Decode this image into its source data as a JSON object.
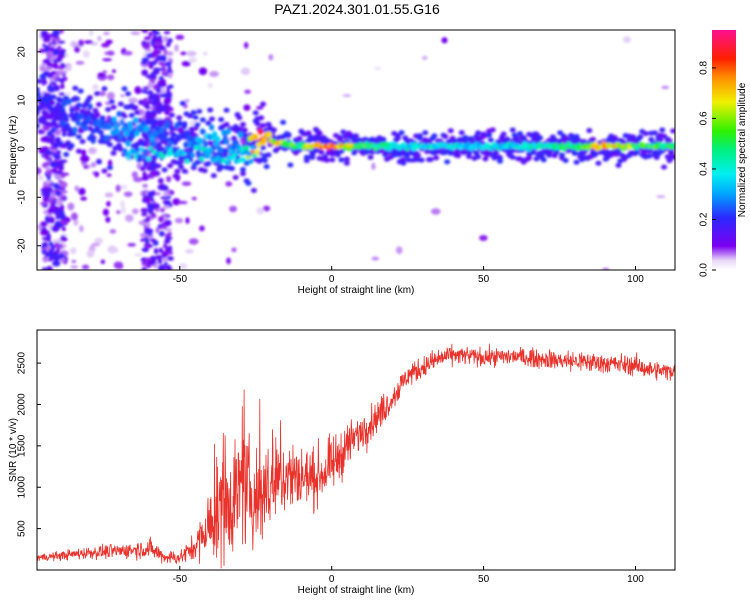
{
  "figure": {
    "title": "PAZ1.2024.301.01.55.G16"
  },
  "chart_data": [
    {
      "type": "heatmap",
      "xlabel": "Height of straight line (km)",
      "ylabel": "Frequency (Hz)",
      "xlim": [
        -97,
        113
      ],
      "ylim": [
        -25,
        24.5
      ],
      "x_ticks": [
        -50,
        0,
        50,
        100
      ],
      "y_ticks": [
        -20,
        -10,
        0,
        10,
        20
      ],
      "x_tick_labels": [
        "-50",
        "0",
        "50",
        "100"
      ],
      "y_tick_labels": [
        "-20",
        "-10",
        "0",
        "10",
        "20"
      ],
      "colorbar": {
        "label": "Normalized spectral amplitude",
        "range": [
          0,
          0.95
        ],
        "ticks": [
          0.0,
          0.2,
          0.4,
          0.6,
          0.8
        ],
        "tick_labels": [
          "0.0",
          "0.2",
          "0.4",
          "0.6",
          "0.8"
        ],
        "colormap": "rainbow (white→violet→blue→cyan→green→yellow→red→magenta)"
      },
      "ridge": {
        "x": [
          -97,
          -90,
          -85,
          -80,
          -75,
          -70,
          -65,
          -60,
          -55,
          -50,
          -45,
          -40,
          -35,
          -30,
          -25,
          -20,
          -15,
          -10,
          -5,
          0,
          10,
          20,
          30,
          40,
          50,
          60,
          70,
          80,
          90,
          100,
          113
        ],
        "frequency": [
          10,
          7,
          6,
          5,
          4.5,
          4.5,
          4,
          3.5,
          3,
          2.5,
          2,
          1.5,
          1,
          1,
          1.5,
          1.5,
          1,
          0.5,
          0.5,
          0.5,
          0.5,
          0.5,
          0.5,
          0.5,
          0.5,
          0.5,
          0.5,
          0.5,
          0.5,
          0.5,
          0.5
        ],
        "amplitude": [
          0.2,
          0.2,
          0.25,
          0.25,
          0.25,
          0.3,
          0.3,
          0.3,
          0.25,
          0.25,
          0.3,
          0.35,
          0.3,
          0.3,
          0.85,
          0.8,
          0.6,
          0.55,
          0.75,
          0.9,
          0.55,
          0.45,
          0.4,
          0.4,
          0.4,
          0.4,
          0.45,
          0.5,
          0.75,
          0.6,
          0.5
        ]
      }
    },
    {
      "type": "line",
      "xlabel": "Height of straight line (km)",
      "ylabel": "SNR (10 * v/v)",
      "xlim": [
        -97,
        113
      ],
      "ylim": [
        0,
        2900
      ],
      "x_ticks": [
        -50,
        0,
        50,
        100
      ],
      "y_ticks": [
        500,
        1000,
        1500,
        2000,
        2500
      ],
      "x_tick_labels": [
        "-50",
        "0",
        "50",
        "100"
      ],
      "y_tick_labels": [
        "500",
        "1000",
        "1500",
        "2000",
        "2500"
      ],
      "series": [
        {
          "color": "#e8322b",
          "x": [
            -97,
            -90,
            -80,
            -70,
            -60,
            -55,
            -50,
            -45,
            -40,
            -35,
            -30,
            -25,
            -20,
            -15,
            -10,
            -5,
            0,
            5,
            10,
            15,
            20,
            25,
            30,
            35,
            40,
            50,
            60,
            70,
            80,
            90,
            100,
            105,
            110,
            113
          ],
          "y": [
            150,
            170,
            210,
            230,
            260,
            160,
            150,
            280,
            550,
            820,
            1000,
            870,
            1000,
            1150,
            1120,
            1120,
            1250,
            1500,
            1680,
            1850,
            2080,
            2350,
            2450,
            2550,
            2600,
            2570,
            2580,
            2550,
            2520,
            2500,
            2470,
            2420,
            2400,
            2420
          ],
          "noise": [
            40,
            50,
            70,
            80,
            110,
            80,
            80,
            150,
            400,
            700,
            600,
            550,
            500,
            450,
            350,
            300,
            300,
            250,
            200,
            180,
            150,
            130,
            120,
            120,
            100,
            100,
            100,
            100,
            120,
            110,
            110,
            100,
            100,
            100
          ]
        }
      ]
    }
  ]
}
